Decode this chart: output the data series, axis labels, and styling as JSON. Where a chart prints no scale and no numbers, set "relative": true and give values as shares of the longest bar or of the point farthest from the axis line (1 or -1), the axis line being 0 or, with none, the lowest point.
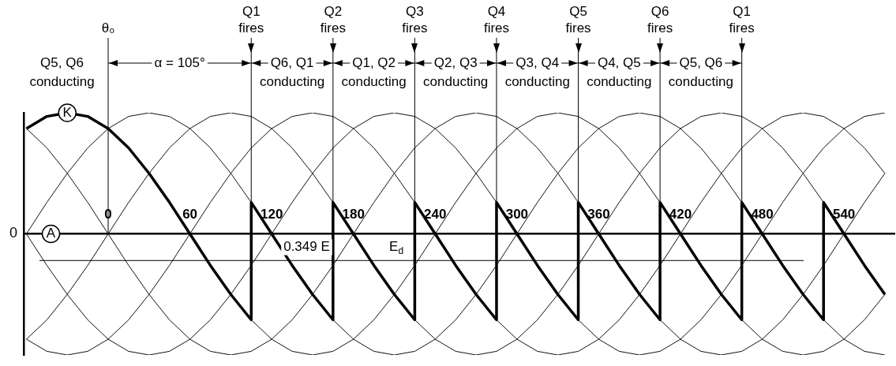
{
  "chart_data": {
    "type": "line",
    "relative": true,
    "legend": false,
    "grid": false,
    "marker": "none",
    "line_style": "solid",
    "xlim": [
      -62,
      577
    ],
    "xticks": [
      0,
      60,
      120,
      180,
      240,
      300,
      360,
      420,
      480,
      540
    ],
    "x": [
      -60,
      -45,
      -30,
      -15,
      0,
      15,
      30,
      45,
      60,
      75,
      90,
      105,
      120,
      135,
      150,
      165,
      180,
      195,
      210,
      225,
      240,
      255,
      270,
      285,
      300,
      315,
      330,
      345,
      360,
      375,
      390,
      405,
      420,
      435,
      450,
      465,
      480,
      495,
      510,
      525,
      540,
      555,
      570
    ],
    "series": [
      {
        "color": "#111111",
        "values": [
          0.87,
          0.97,
          1,
          0.97,
          0.87,
          0.71,
          0.5,
          0.26,
          0,
          -0.26,
          -0.5,
          -0.71,
          -0.87,
          -0.97,
          -1,
          -0.97,
          -0.87,
          -0.71,
          -0.5,
          -0.26,
          0,
          0.26,
          0.5,
          0.71,
          0.87,
          0.97,
          1,
          0.97,
          0.87,
          0.71,
          0.5,
          0.26,
          0,
          -0.26,
          -0.5,
          -0.71,
          -0.87,
          -0.97,
          -1,
          -0.97,
          -0.87,
          -0.71,
          -0.5
        ]
      },
      {
        "color": "#111111",
        "values": [
          0,
          0.26,
          0.5,
          0.71,
          0.87,
          0.97,
          1,
          0.97,
          0.87,
          0.71,
          0.5,
          0.26,
          0,
          -0.26,
          -0.5,
          -0.71,
          -0.87,
          -0.97,
          -1,
          -0.97,
          -0.87,
          -0.71,
          -0.5,
          -0.26,
          0,
          0.26,
          0.5,
          0.71,
          0.87,
          0.97,
          1,
          0.97,
          0.87,
          0.71,
          0.5,
          0.26,
          0,
          -0.26,
          -0.5,
          -0.71,
          -0.87,
          -0.97,
          -1
        ]
      },
      {
        "color": "#111111",
        "values": [
          -0.87,
          -0.71,
          -0.5,
          -0.26,
          0,
          0.26,
          0.5,
          0.71,
          0.87,
          0.97,
          1,
          0.97,
          0.87,
          0.71,
          0.5,
          0.26,
          0,
          -0.26,
          -0.5,
          -0.71,
          -0.87,
          -0.97,
          -1,
          -0.97,
          -0.87,
          -0.71,
          -0.5,
          -0.26,
          0,
          0.26,
          0.5,
          0.71,
          0.87,
          0.97,
          1,
          0.97,
          0.87,
          0.71,
          0.5,
          0.26,
          0,
          -0.26,
          -0.5
        ]
      },
      {
        "color": "#111111",
        "values": [
          -0.87,
          -0.97,
          -1,
          -0.97,
          -0.87,
          -0.71,
          -0.5,
          -0.26,
          0,
          0.26,
          0.5,
          0.71,
          0.87,
          0.97,
          1,
          0.97,
          0.87,
          0.71,
          0.5,
          0.26,
          0,
          -0.26,
          -0.5,
          -0.71,
          -0.87,
          -0.97,
          -1,
          -0.97,
          -0.87,
          -0.71,
          -0.5,
          -0.26,
          0,
          0.26,
          0.5,
          0.71,
          0.87,
          0.97,
          1,
          0.97,
          0.87,
          0.71,
          0.5
        ]
      },
      {
        "color": "#111111",
        "values": [
          0,
          -0.26,
          -0.5,
          -0.71,
          -0.87,
          -0.97,
          -1,
          -0.97,
          -0.87,
          -0.71,
          -0.5,
          -0.26,
          0,
          0.26,
          0.5,
          0.71,
          0.87,
          0.97,
          1,
          0.97,
          0.87,
          0.71,
          0.5,
          0.26,
          0,
          -0.26,
          -0.5,
          -0.71,
          -0.87,
          -0.97,
          -1,
          -0.97,
          -0.87,
          -0.71,
          -0.5,
          -0.26,
          0,
          0.26,
          0.5,
          0.71,
          0.87,
          0.97,
          1
        ]
      },
      {
        "color": "#111111",
        "values": [
          0.87,
          0.71,
          0.5,
          0.26,
          0,
          -0.26,
          -0.5,
          -0.71,
          -0.87,
          -0.97,
          -1,
          -0.97,
          -0.87,
          -0.71,
          -0.5,
          -0.26,
          0,
          0.26,
          0.5,
          0.71,
          0.87,
          0.97,
          1,
          0.97,
          0.87,
          0.71,
          0.5,
          0.26,
          0,
          -0.26,
          -0.5,
          -0.71,
          -0.87,
          -0.97,
          -1,
          -0.97,
          -0.87,
          -0.71,
          -0.5,
          -0.26,
          0,
          0.26,
          0.5
        ]
      },
      {
        "color": "#000000",
        "x": [
          -60,
          -45,
          -30,
          -15,
          0,
          15,
          30,
          45,
          60,
          75,
          90,
          105,
          105,
          120,
          135,
          150,
          165,
          165,
          180,
          195,
          210,
          225,
          225,
          240,
          255,
          270,
          285,
          285,
          300,
          315,
          330,
          345,
          345,
          360,
          375,
          390,
          405,
          405,
          420,
          435,
          450,
          465,
          465,
          480,
          495,
          510,
          525,
          525,
          540,
          555,
          570
        ],
        "values": [
          0.87,
          0.97,
          1,
          0.97,
          0.87,
          0.71,
          0.5,
          0.26,
          0,
          -0.26,
          -0.5,
          -0.71,
          0.26,
          0,
          -0.26,
          -0.5,
          -0.71,
          0.26,
          0,
          -0.26,
          -0.5,
          -0.71,
          0.26,
          0,
          -0.26,
          -0.5,
          -0.71,
          0.26,
          0,
          -0.26,
          -0.5,
          -0.71,
          0.26,
          0,
          -0.26,
          -0.5,
          -0.71,
          0.26,
          0,
          -0.26,
          -0.5,
          -0.71,
          0.26,
          0,
          -0.26,
          -0.5,
          -0.71,
          0.26,
          0,
          -0.26,
          -0.5
        ]
      }
    ],
    "ref_lines": [
      {
        "axis": "x",
        "value": 0,
        "label": "θ₀"
      },
      {
        "axis": "x",
        "value": 105,
        "label": "Q1\nfires"
      },
      {
        "axis": "x",
        "value": 165,
        "label": "Q2\nfires"
      },
      {
        "axis": "x",
        "value": 225,
        "label": "Q3\nfires"
      },
      {
        "axis": "x",
        "value": 285,
        "label": "Q4\nfires"
      },
      {
        "axis": "x",
        "value": 345,
        "label": "Q5\nfires"
      },
      {
        "axis": "x",
        "value": 405,
        "label": "Q6\nfires"
      },
      {
        "axis": "x",
        "value": 465,
        "label": "Q1\nfires"
      },
      {
        "axis": "y",
        "value": -0.22,
        "label": "E$_{d}$"
      }
    ],
    "annotations": [
      "Q5, Q6\nconducting",
      "α = 105°",
      "Q6, Q1\nconducting",
      "Q1, Q2\nconducting",
      "Q2, Q3\nconducting",
      "Q3, Q4\nconducting",
      "Q4, Q5\nconducting",
      "Q5, Q6\nconducting",
      "0.349 E",
      {
        "text": "K",
        "x": -30,
        "y": 1
      },
      {
        "text": "A",
        "x": -42,
        "y": 0
      },
      {
        "text": "0",
        "x": -62,
        "y": 0
      }
    ]
  }
}
